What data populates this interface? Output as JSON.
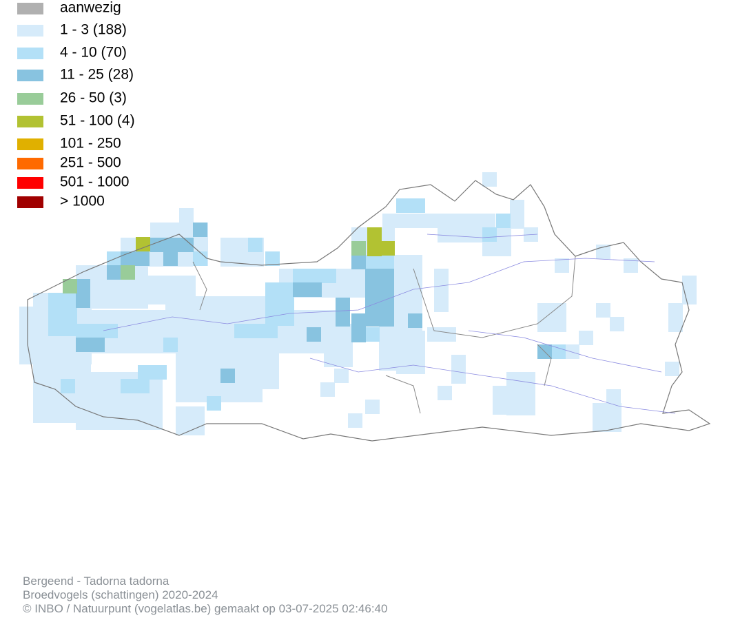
{
  "legend": {
    "items": [
      {
        "label": "aanwezig",
        "color": "#b0b0b0"
      },
      {
        "label": "1 - 3 (188)",
        "color": "#d6ebfa"
      },
      {
        "label": "4 - 10 (70)",
        "color": "#b3e0f7"
      },
      {
        "label": "11 - 25 (28)",
        "color": "#88c3e0"
      },
      {
        "label": "26 - 50 (3)",
        "color": "#99cc99"
      },
      {
        "label": "51 - 100 (4)",
        "color": "#b2c232"
      },
      {
        "label": "101 - 250",
        "color": "#e0b000"
      },
      {
        "label": "251 - 500",
        "color": "#ff6a00"
      },
      {
        "label": "501 - 1000",
        "color": "#ff0000"
      },
      {
        "label": "> 1000",
        "color": "#a00000"
      }
    ]
  },
  "footer": {
    "species": "Bergeend - Tadorna tadorna",
    "dataset": "Broedvogels (schattingen) 2020-2024",
    "credits": "© INBO / Natuurpunt (vogelatlas.be) gemaakt op 03-07-2025 02:46:40"
  }
}
